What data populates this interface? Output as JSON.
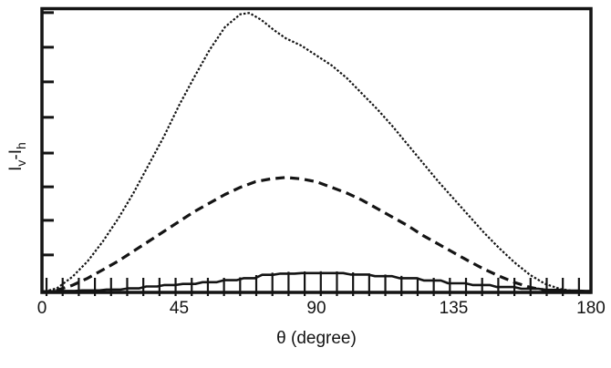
{
  "figure": {
    "background": "#ffffff",
    "ink_color": "#141414"
  },
  "chart_data": {
    "type": "line",
    "title": "",
    "xlabel": "θ (degree)",
    "ylabel": "Iv-Ih",
    "ylabel_parts": {
      "sym1": "I",
      "sub1": "v",
      "minus": "-",
      "sym2": "I",
      "sub2": "h"
    },
    "xlim": [
      0,
      180
    ],
    "ylim": [
      0,
      1
    ],
    "x_ticks": [
      0,
      45,
      90,
      135,
      180
    ],
    "x_tick_labels": [
      "0",
      "45",
      "90",
      "135",
      "180"
    ],
    "y_tick_values": [
      0.132,
      0.254,
      0.372,
      0.491,
      0.617,
      0.742,
      0.864,
      0.986
    ],
    "y_tick_labels_shown": false,
    "grid": false,
    "legend": null,
    "frame": "box",
    "value_units": "relative (y axis unlabeled)",
    "series": [
      {
        "name": "dotted-curve",
        "style": "dotted",
        "x": [
          0,
          5,
          10,
          15,
          20,
          25,
          30,
          35,
          40,
          45,
          50,
          55,
          60,
          65,
          68,
          72,
          76,
          80,
          85,
          90,
          95,
          100,
          105,
          110,
          115,
          120,
          125,
          130,
          135,
          140,
          145,
          150,
          155,
          160,
          165,
          170,
          175,
          180
        ],
        "y": [
          0,
          0.015,
          0.055,
          0.11,
          0.18,
          0.26,
          0.35,
          0.45,
          0.55,
          0.66,
          0.76,
          0.855,
          0.935,
          0.98,
          0.985,
          0.96,
          0.925,
          0.895,
          0.87,
          0.835,
          0.8,
          0.755,
          0.7,
          0.645,
          0.585,
          0.52,
          0.455,
          0.39,
          0.33,
          0.27,
          0.21,
          0.155,
          0.105,
          0.062,
          0.03,
          0.012,
          0.004,
          0
        ]
      },
      {
        "name": "dashed-curve",
        "style": "dashed",
        "x": [
          0,
          5,
          10,
          15,
          20,
          25,
          30,
          35,
          40,
          45,
          50,
          55,
          60,
          65,
          70,
          75,
          80,
          85,
          90,
          95,
          100,
          105,
          110,
          115,
          120,
          125,
          130,
          135,
          140,
          145,
          150,
          155,
          160,
          165,
          170,
          175,
          180
        ],
        "y": [
          0,
          0.008,
          0.025,
          0.05,
          0.08,
          0.11,
          0.145,
          0.18,
          0.215,
          0.25,
          0.285,
          0.315,
          0.345,
          0.37,
          0.39,
          0.4,
          0.405,
          0.4,
          0.39,
          0.37,
          0.35,
          0.325,
          0.295,
          0.265,
          0.235,
          0.2,
          0.17,
          0.14,
          0.11,
          0.082,
          0.057,
          0.035,
          0.018,
          0.008,
          0.003,
          0.001,
          0
        ]
      },
      {
        "name": "solid-curve-stepped",
        "style": "solid-steps",
        "x": [
          0,
          8,
          16,
          24,
          30,
          36,
          42,
          48,
          55,
          62,
          68,
          74,
          80,
          88,
          96,
          104,
          112,
          120,
          128,
          136,
          144,
          152,
          160,
          168,
          174,
          180
        ],
        "y": [
          0.004,
          0.005,
          0.007,
          0.01,
          0.014,
          0.021,
          0.026,
          0.03,
          0.036,
          0.043,
          0.05,
          0.062,
          0.066,
          0.068,
          0.068,
          0.063,
          0.057,
          0.05,
          0.042,
          0.032,
          0.026,
          0.019,
          0.013,
          0.009,
          0.006,
          0.005
        ]
      }
    ],
    "error_bars": {
      "attached_to": "solid-curve-stepped",
      "theta_start": 1.5,
      "theta_step": 5.29,
      "count": 34
    }
  }
}
